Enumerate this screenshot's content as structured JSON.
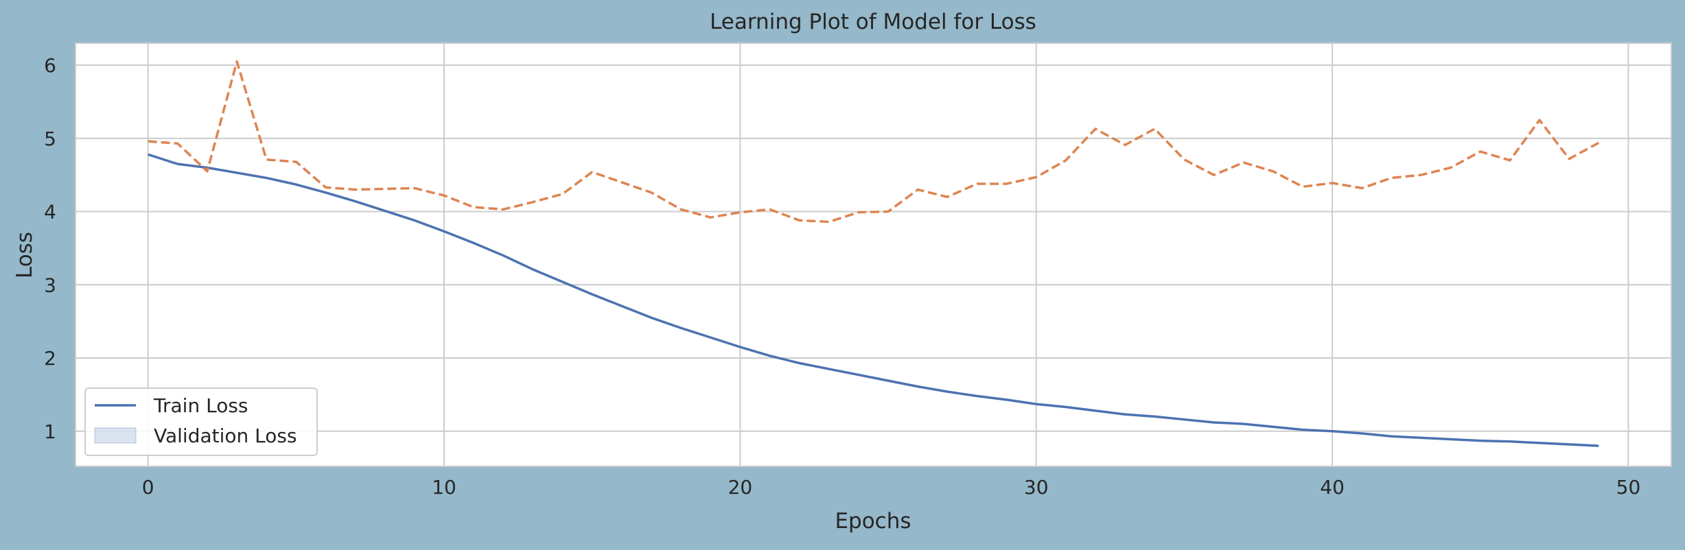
{
  "chart_data": {
    "type": "line",
    "title": "Learning Plot of Model for Loss",
    "xlabel": "Epochs",
    "ylabel": "Loss",
    "xlim": [
      -2.45,
      51.45
    ],
    "ylim": [
      0.52,
      6.3
    ],
    "xticks": [
      0,
      10,
      20,
      30,
      40,
      50
    ],
    "yticks": [
      1,
      2,
      3,
      4,
      5,
      6
    ],
    "grid": true,
    "legend_position": "lower-left",
    "x": [
      0,
      1,
      2,
      3,
      4,
      5,
      6,
      7,
      8,
      9,
      10,
      11,
      12,
      13,
      14,
      15,
      16,
      17,
      18,
      19,
      20,
      21,
      22,
      23,
      24,
      25,
      26,
      27,
      28,
      29,
      30,
      31,
      32,
      33,
      34,
      35,
      36,
      37,
      38,
      39,
      40,
      41,
      42,
      43,
      44,
      45,
      46,
      47,
      48,
      49
    ],
    "series": [
      {
        "name": "Train Loss",
        "color": "#4c72b0",
        "style": "solid",
        "values": [
          4.78,
          4.65,
          4.6,
          4.53,
          4.46,
          4.37,
          4.26,
          4.14,
          4.01,
          3.88,
          3.73,
          3.57,
          3.4,
          3.21,
          3.04,
          2.87,
          2.71,
          2.55,
          2.41,
          2.28,
          2.15,
          2.03,
          1.93,
          1.85,
          1.77,
          1.69,
          1.61,
          1.54,
          1.48,
          1.43,
          1.37,
          1.33,
          1.28,
          1.23,
          1.2,
          1.16,
          1.12,
          1.1,
          1.06,
          1.02,
          1.0,
          0.97,
          0.93,
          0.91,
          0.89,
          0.87,
          0.86,
          0.84,
          0.82,
          0.8
        ]
      },
      {
        "name": "Validation Loss",
        "color": "#dd8452",
        "style": "dashed",
        "values": [
          4.96,
          4.93,
          4.55,
          6.05,
          4.71,
          4.68,
          4.33,
          4.3,
          4.31,
          4.32,
          4.22,
          4.06,
          4.03,
          4.13,
          4.24,
          4.54,
          4.4,
          4.26,
          4.03,
          3.92,
          3.99,
          4.03,
          3.88,
          3.86,
          3.99,
          4.0,
          4.3,
          4.2,
          4.38,
          4.38,
          4.47,
          4.7,
          5.13,
          4.91,
          5.13,
          4.71,
          4.5,
          4.67,
          4.55,
          4.34,
          4.39,
          4.32,
          4.46,
          4.5,
          4.6,
          4.82,
          4.7,
          5.25,
          4.72,
          4.94
        ]
      }
    ],
    "legend": [
      {
        "label": "Train Loss",
        "marker": "line",
        "color": "#4c72b0"
      },
      {
        "label": "Validation Loss",
        "marker": "patch",
        "color": "#4c72b0"
      }
    ]
  }
}
